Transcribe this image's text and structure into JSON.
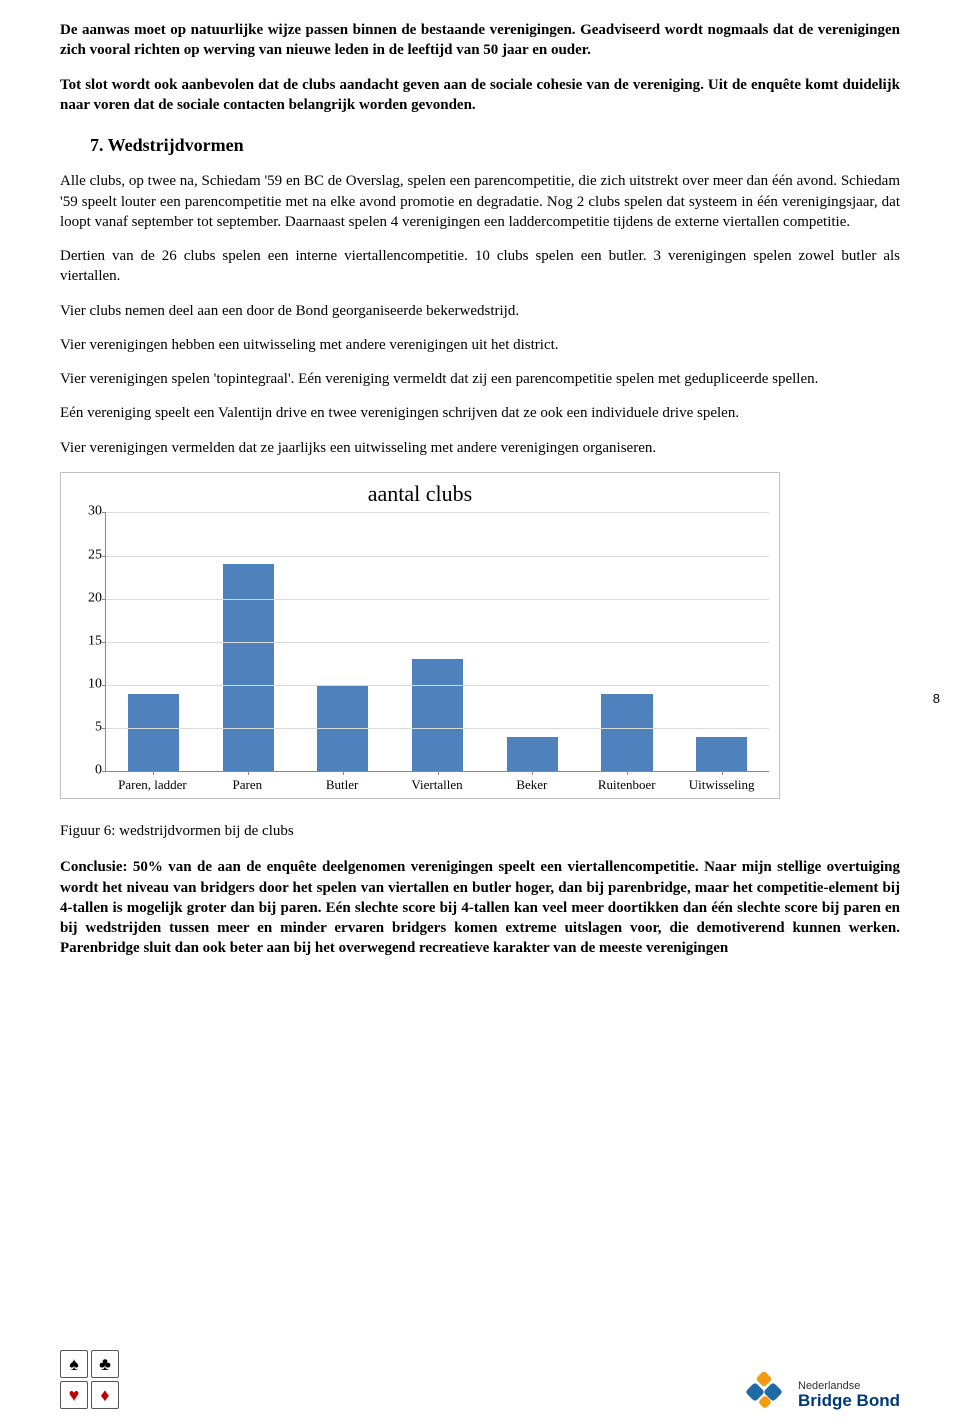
{
  "intro_bold": "De aanwas moet op natuurlijke wijze passen binnen de bestaande verenigingen. Geadviseerd wordt nogmaals dat de verenigingen zich vooral richten op werving van nieuwe leden in de leeftijd van 50 jaar en ouder.",
  "intro_bold2": "Tot slot wordt ook aanbevolen dat de clubs aandacht geven aan de sociale cohesie van de vereniging. Uit de enquête komt duidelijk naar voren dat de sociale contacten belangrijk worden gevonden.",
  "section_heading": "7. Wedstrijdvormen",
  "p1": "Alle clubs, op twee na, Schiedam '59 en BC de Overslag, spelen een parencompetitie, die zich uitstrekt over meer dan één avond. Schiedam '59 speelt louter een parencompetitie met na elke avond promotie en degradatie. Nog 2 clubs spelen dat systeem in één verenigingsjaar, dat loopt vanaf september tot september. Daarnaast spelen 4 verenigingen een laddercompetitie tijdens de externe viertallen competitie.",
  "p2": "Dertien van de 26 clubs spelen een interne viertallencompetitie. 10 clubs spelen een butler. 3 verenigingen spelen zowel butler als viertallen.",
  "p3": "Vier clubs nemen deel aan een door de Bond georganiseerde bekerwedstrijd.",
  "p4": "Vier verenigingen hebben een uitwisseling met andere verenigingen uit het district.",
  "p5": "Vier verenigingen spelen 'topintegraal'. Eén vereniging vermeldt dat zij een parencompetitie spelen met gedupliceerde spellen.",
  "p6": "Eén vereniging speelt een Valentijn drive en twee verenigingen schrijven dat ze ook een individuele drive spelen.",
  "p7": "Vier verenigingen vermelden dat ze jaarlijks een uitwisseling met andere verenigingen organiseren.",
  "chart": {
    "type": "bar",
    "title": "aantal clubs",
    "categories": [
      "Paren, ladder",
      "Paren",
      "Butler",
      "Viertallen",
      "Beker",
      "Ruitenboer",
      "Uitwisseling"
    ],
    "values": [
      9,
      24,
      10,
      13,
      4,
      9,
      4
    ],
    "bar_color": "#4f81bd",
    "ylim": [
      0,
      30
    ],
    "ytick_step": 5,
    "grid_color": "#d9d9d9",
    "axis_color": "#888888",
    "background_color": "#ffffff",
    "title_fontsize": 22,
    "label_fontsize": 13,
    "bar_width_ratio": 0.54
  },
  "figure_caption": "Figuur 6: wedstrijdvormen bij de clubs",
  "conclusion": "Conclusie: 50% van de aan de enquête deelgenomen verenigingen speelt een viertallencompetitie. Naar mijn stellige overtuiging wordt het niveau van bridgers door het spelen van viertallen en butler hoger, dan bij parenbridge, maar het competitie-element bij 4-tallen is mogelijk groter dan bij paren. Eén slechte score bij 4-tallen kan veel meer doortikken dan één slechte score bij paren en bij wedstrijden tussen meer en minder ervaren bridgers komen extreme uitslagen voor, die demotiverend kunnen werken. Parenbridge sluit dan ook beter aan bij het overwegend recreatieve karakter van de meeste verenigingen",
  "page_number": "8",
  "suits": {
    "spade": "♠",
    "club": "♣",
    "heart": "♥",
    "diamond": "♦"
  },
  "logo": {
    "line1": "Nederlandse",
    "line2": "Bridge Bond"
  },
  "logo_colors": {
    "blue": "#1f6aa5",
    "orange": "#f39c12"
  }
}
